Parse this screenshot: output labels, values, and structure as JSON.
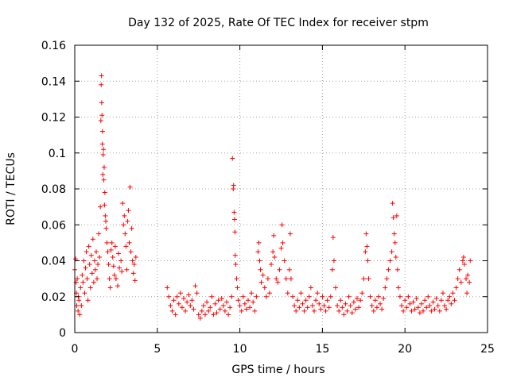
{
  "chart_data": {
    "type": "scatter",
    "title": "Day 132 of 2025, Rate Of TEC Index for receiver stpm",
    "xlabel": "GPS time / hours",
    "ylabel": "ROTI / TECUs",
    "xlim": [
      0,
      25
    ],
    "ylim": [
      0,
      0.16
    ],
    "xticks": [
      0,
      5,
      10,
      15,
      20,
      25
    ],
    "xtick_labels": [
      "0",
      "5",
      "10",
      "15",
      "20",
      "25"
    ],
    "yticks": [
      0,
      0.02,
      0.04,
      0.06,
      0.08,
      0.1,
      0.12,
      0.14,
      0.16
    ],
    "ytick_labels": [
      "0",
      "0.02",
      "0.04",
      "0.06",
      "0.08",
      "0.1",
      "0.12",
      "0.14",
      "0.16"
    ],
    "grid": true,
    "marker": "+",
    "series_color": "#ff0000",
    "series": [
      {
        "name": "ROTI",
        "points": [
          [
            0.0,
            0.035
          ],
          [
            0.05,
            0.041
          ],
          [
            0.08,
            0.028
          ],
          [
            0.1,
            0.022
          ],
          [
            0.12,
            0.015
          ],
          [
            0.15,
            0.03
          ],
          [
            0.2,
            0.012
          ],
          [
            0.22,
            0.02
          ],
          [
            0.25,
            0.018
          ],
          [
            0.3,
            0.01
          ],
          [
            0.35,
            0.025
          ],
          [
            0.4,
            0.015
          ],
          [
            0.45,
            0.032
          ],
          [
            0.5,
            0.028
          ],
          [
            0.55,
            0.04
          ],
          [
            0.6,
            0.022
          ],
          [
            0.65,
            0.036
          ],
          [
            0.7,
            0.045
          ],
          [
            0.75,
            0.03
          ],
          [
            0.8,
            0.018
          ],
          [
            0.85,
            0.048
          ],
          [
            0.9,
            0.038
          ],
          [
            0.95,
            0.025
          ],
          [
            1.0,
            0.043
          ],
          [
            1.05,
            0.033
          ],
          [
            1.1,
            0.052
          ],
          [
            1.15,
            0.028
          ],
          [
            1.2,
            0.04
          ],
          [
            1.25,
            0.035
          ],
          [
            1.3,
            0.045
          ],
          [
            1.35,
            0.03
          ],
          [
            1.4,
            0.038
          ],
          [
            1.45,
            0.055
          ],
          [
            1.5,
            0.042
          ],
          [
            1.55,
            0.07
          ],
          [
            1.58,
            0.118
          ],
          [
            1.6,
            0.138
          ],
          [
            1.62,
            0.143
          ],
          [
            1.63,
            0.128
          ],
          [
            1.65,
            0.121
          ],
          [
            1.67,
            0.105
          ],
          [
            1.68,
            0.112
          ],
          [
            1.7,
            0.088
          ],
          [
            1.72,
            0.099
          ],
          [
            1.74,
            0.102
          ],
          [
            1.76,
            0.085
          ],
          [
            1.78,
            0.092
          ],
          [
            1.8,
            0.071
          ],
          [
            1.82,
            0.078
          ],
          [
            1.85,
            0.065
          ],
          [
            1.88,
            0.062
          ],
          [
            1.9,
            0.058
          ],
          [
            1.95,
            0.05
          ],
          [
            2.0,
            0.045
          ],
          [
            2.05,
            0.038
          ],
          [
            2.1,
            0.03
          ],
          [
            2.15,
            0.025
          ],
          [
            2.2,
            0.046
          ],
          [
            2.25,
            0.05
          ],
          [
            2.3,
            0.042
          ],
          [
            2.35,
            0.037
          ],
          [
            2.4,
            0.032
          ],
          [
            2.45,
            0.048
          ],
          [
            2.5,
            0.03
          ],
          [
            2.6,
            0.026
          ],
          [
            2.65,
            0.044
          ],
          [
            2.7,
            0.036
          ],
          [
            2.8,
            0.04
          ],
          [
            2.85,
            0.034
          ],
          [
            2.9,
            0.072
          ],
          [
            2.95,
            0.06
          ],
          [
            3.0,
            0.065
          ],
          [
            3.05,
            0.055
          ],
          [
            3.1,
            0.048
          ],
          [
            3.15,
            0.035
          ],
          [
            3.2,
            0.062
          ],
          [
            3.25,
            0.068
          ],
          [
            3.3,
            0.05
          ],
          [
            3.35,
            0.081
          ],
          [
            3.4,
            0.045
          ],
          [
            3.45,
            0.058
          ],
          [
            3.5,
            0.04
          ],
          [
            3.55,
            0.033
          ],
          [
            3.6,
            0.038
          ],
          [
            3.65,
            0.029
          ],
          [
            3.7,
            0.042
          ],
          [
            5.6,
            0.025
          ],
          [
            5.7,
            0.02
          ],
          [
            5.8,
            0.015
          ],
          [
            5.9,
            0.012
          ],
          [
            6.0,
            0.018
          ],
          [
            6.1,
            0.01
          ],
          [
            6.2,
            0.02
          ],
          [
            6.3,
            0.016
          ],
          [
            6.4,
            0.022
          ],
          [
            6.5,
            0.014
          ],
          [
            6.6,
            0.019
          ],
          [
            6.7,
            0.012
          ],
          [
            6.8,
            0.017
          ],
          [
            6.9,
            0.021
          ],
          [
            7.0,
            0.015
          ],
          [
            7.1,
            0.018
          ],
          [
            7.2,
            0.013
          ],
          [
            7.3,
            0.026
          ],
          [
            7.4,
            0.022
          ],
          [
            7.5,
            0.01
          ],
          [
            7.6,
            0.008
          ],
          [
            7.7,
            0.012
          ],
          [
            7.8,
            0.015
          ],
          [
            7.9,
            0.01
          ],
          [
            8.0,
            0.017
          ],
          [
            8.1,
            0.012
          ],
          [
            8.2,
            0.014
          ],
          [
            8.3,
            0.02
          ],
          [
            8.4,
            0.01
          ],
          [
            8.5,
            0.016
          ],
          [
            8.6,
            0.011
          ],
          [
            8.7,
            0.018
          ],
          [
            8.8,
            0.013
          ],
          [
            8.9,
            0.019
          ],
          [
            9.0,
            0.015
          ],
          [
            9.1,
            0.012
          ],
          [
            9.2,
            0.017
          ],
          [
            9.3,
            0.01
          ],
          [
            9.4,
            0.014
          ],
          [
            9.5,
            0.02
          ],
          [
            9.55,
            0.097
          ],
          [
            9.6,
            0.08
          ],
          [
            9.62,
            0.082
          ],
          [
            9.65,
            0.067
          ],
          [
            9.68,
            0.063
          ],
          [
            9.7,
            0.056
          ],
          [
            9.72,
            0.043
          ],
          [
            9.75,
            0.038
          ],
          [
            9.8,
            0.03
          ],
          [
            9.85,
            0.025
          ],
          [
            9.9,
            0.018
          ],
          [
            10.0,
            0.015
          ],
          [
            10.1,
            0.012
          ],
          [
            10.2,
            0.02
          ],
          [
            10.3,
            0.016
          ],
          [
            10.4,
            0.013
          ],
          [
            10.5,
            0.018
          ],
          [
            10.6,
            0.014
          ],
          [
            10.7,
            0.022
          ],
          [
            10.8,
            0.017
          ],
          [
            10.9,
            0.012
          ],
          [
            11.0,
            0.02
          ],
          [
            11.1,
            0.045
          ],
          [
            11.15,
            0.05
          ],
          [
            11.2,
            0.04
          ],
          [
            11.25,
            0.035
          ],
          [
            11.3,
            0.028
          ],
          [
            11.4,
            0.032
          ],
          [
            11.5,
            0.025
          ],
          [
            11.6,
            0.02
          ],
          [
            11.7,
            0.03
          ],
          [
            11.8,
            0.022
          ],
          [
            11.9,
            0.038
          ],
          [
            12.0,
            0.045
          ],
          [
            12.05,
            0.054
          ],
          [
            12.1,
            0.042
          ],
          [
            12.2,
            0.03
          ],
          [
            12.3,
            0.028
          ],
          [
            12.4,
            0.035
          ],
          [
            12.5,
            0.047
          ],
          [
            12.55,
            0.06
          ],
          [
            12.6,
            0.05
          ],
          [
            12.7,
            0.04
          ],
          [
            12.8,
            0.03
          ],
          [
            12.9,
            0.022
          ],
          [
            13.0,
            0.035
          ],
          [
            13.05,
            0.055
          ],
          [
            13.1,
            0.03
          ],
          [
            13.2,
            0.02
          ],
          [
            13.3,
            0.015
          ],
          [
            13.4,
            0.012
          ],
          [
            13.5,
            0.018
          ],
          [
            13.6,
            0.014
          ],
          [
            13.7,
            0.022
          ],
          [
            13.8,
            0.016
          ],
          [
            13.9,
            0.012
          ],
          [
            14.0,
            0.018
          ],
          [
            14.1,
            0.014
          ],
          [
            14.2,
            0.02
          ],
          [
            14.3,
            0.025
          ],
          [
            14.4,
            0.015
          ],
          [
            14.5,
            0.012
          ],
          [
            14.6,
            0.018
          ],
          [
            14.7,
            0.022
          ],
          [
            14.8,
            0.016
          ],
          [
            14.9,
            0.013
          ],
          [
            15.0,
            0.02
          ],
          [
            15.1,
            0.015
          ],
          [
            15.2,
            0.012
          ],
          [
            15.3,
            0.018
          ],
          [
            15.4,
            0.014
          ],
          [
            15.5,
            0.02
          ],
          [
            15.6,
            0.035
          ],
          [
            15.65,
            0.053
          ],
          [
            15.7,
            0.04
          ],
          [
            15.8,
            0.025
          ],
          [
            15.9,
            0.015
          ],
          [
            16.0,
            0.012
          ],
          [
            16.1,
            0.018
          ],
          [
            16.2,
            0.014
          ],
          [
            16.3,
            0.01
          ],
          [
            16.4,
            0.016
          ],
          [
            16.5,
            0.012
          ],
          [
            16.6,
            0.02
          ],
          [
            16.7,
            0.015
          ],
          [
            16.8,
            0.011
          ],
          [
            16.9,
            0.017
          ],
          [
            17.0,
            0.013
          ],
          [
            17.1,
            0.019
          ],
          [
            17.2,
            0.014
          ],
          [
            17.3,
            0.018
          ],
          [
            17.4,
            0.022
          ],
          [
            17.5,
            0.03
          ],
          [
            17.6,
            0.045
          ],
          [
            17.65,
            0.055
          ],
          [
            17.7,
            0.048
          ],
          [
            17.75,
            0.04
          ],
          [
            17.8,
            0.03
          ],
          [
            17.9,
            0.02
          ],
          [
            18.0,
            0.015
          ],
          [
            18.1,
            0.012
          ],
          [
            18.2,
            0.018
          ],
          [
            18.3,
            0.014
          ],
          [
            18.4,
            0.02
          ],
          [
            18.5,
            0.016
          ],
          [
            18.6,
            0.013
          ],
          [
            18.7,
            0.019
          ],
          [
            18.8,
            0.025
          ],
          [
            18.9,
            0.03
          ],
          [
            19.0,
            0.035
          ],
          [
            19.1,
            0.04
          ],
          [
            19.2,
            0.045
          ],
          [
            19.25,
            0.072
          ],
          [
            19.3,
            0.064
          ],
          [
            19.35,
            0.055
          ],
          [
            19.4,
            0.05
          ],
          [
            19.45,
            0.042
          ],
          [
            19.5,
            0.065
          ],
          [
            19.55,
            0.035
          ],
          [
            19.6,
            0.025
          ],
          [
            19.7,
            0.02
          ],
          [
            19.8,
            0.015
          ],
          [
            19.9,
            0.012
          ],
          [
            20.0,
            0.018
          ],
          [
            20.1,
            0.014
          ],
          [
            20.2,
            0.02
          ],
          [
            20.3,
            0.016
          ],
          [
            20.4,
            0.012
          ],
          [
            20.5,
            0.017
          ],
          [
            20.6,
            0.013
          ],
          [
            20.7,
            0.019
          ],
          [
            20.8,
            0.014
          ],
          [
            20.9,
            0.011
          ],
          [
            21.0,
            0.016
          ],
          [
            21.1,
            0.012
          ],
          [
            21.2,
            0.018
          ],
          [
            21.3,
            0.014
          ],
          [
            21.4,
            0.02
          ],
          [
            21.5,
            0.015
          ],
          [
            21.6,
            0.012
          ],
          [
            21.7,
            0.017
          ],
          [
            21.8,
            0.013
          ],
          [
            21.9,
            0.019
          ],
          [
            22.0,
            0.015
          ],
          [
            22.1,
            0.012
          ],
          [
            22.2,
            0.018
          ],
          [
            22.3,
            0.022
          ],
          [
            22.4,
            0.015
          ],
          [
            22.5,
            0.013
          ],
          [
            22.6,
            0.018
          ],
          [
            22.7,
            0.02
          ],
          [
            22.8,
            0.016
          ],
          [
            22.9,
            0.022
          ],
          [
            23.0,
            0.018
          ],
          [
            23.1,
            0.025
          ],
          [
            23.2,
            0.03
          ],
          [
            23.3,
            0.035
          ],
          [
            23.4,
            0.028
          ],
          [
            23.5,
            0.04
          ],
          [
            23.55,
            0.042
          ],
          [
            23.6,
            0.038
          ],
          [
            23.7,
            0.03
          ],
          [
            23.75,
            0.022
          ],
          [
            23.8,
            0.032
          ],
          [
            23.9,
            0.028
          ],
          [
            23.95,
            0.04
          ]
        ]
      }
    ]
  }
}
